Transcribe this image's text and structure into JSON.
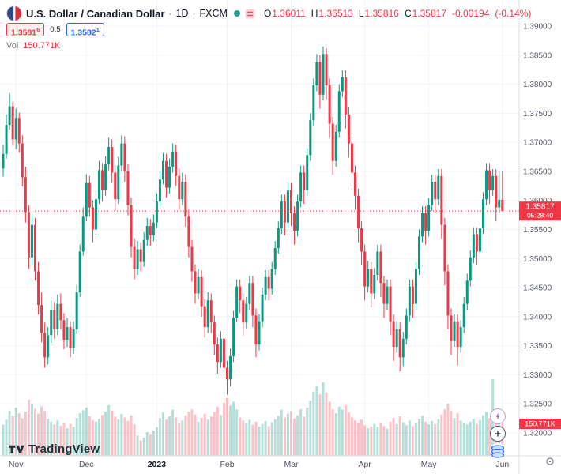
{
  "colors": {
    "up": "#089981",
    "down": "#f23645",
    "accent_blue": "#2962ff",
    "badge_red": "#f23645",
    "grid": "#f0f3fa",
    "axis_text": "#50535e"
  },
  "header": {
    "symbol_title": "U.S. Dollar / Canadian Dollar",
    "sep": "·",
    "timeframe": "1D",
    "exchange": "FXCM",
    "ohlc": {
      "o_label": "O",
      "o": "1.36011",
      "h_label": "H",
      "h": "1.36513",
      "l_label": "L",
      "l": "1.35816",
      "c_label": "C",
      "c": "1.35817",
      "change": "-0.00194",
      "change_pct": "(-0.14%)"
    }
  },
  "trade_buttons": {
    "sell_main": "1.3581",
    "sell_sup": "6",
    "spread": "0.5",
    "buy_main": "1.3582",
    "buy_sup": "1"
  },
  "volume_row": {
    "label": "Vol",
    "value": "150.771K"
  },
  "price_scale": {
    "ticks": [
      "1.39000",
      "1.38500",
      "1.38000",
      "1.37500",
      "1.37000",
      "1.36500",
      "1.36000",
      "1.35500",
      "1.35000",
      "1.34500",
      "1.34000",
      "1.33500",
      "1.33000",
      "1.32500",
      "1.32000"
    ],
    "last_price": "1.35817",
    "countdown": "05:28:40",
    "volume_badge": "150.771K"
  },
  "time_scale": [
    {
      "text": "Nov",
      "index": 4
    },
    {
      "text": "Dec",
      "index": 26
    },
    {
      "text": "2023",
      "index": 48,
      "bold": true
    },
    {
      "text": "Feb",
      "index": 70
    },
    {
      "text": "Mar",
      "index": 90
    },
    {
      "text": "Apr",
      "index": 113
    },
    {
      "text": "May",
      "index": 133
    },
    {
      "text": "Jun",
      "index": 156
    }
  ],
  "footer": {
    "logo": "TradingView"
  },
  "chart_data": {
    "type": "candlestick",
    "symbol": "USD/CAD",
    "timeframe": "1D",
    "exchange": "FXCM",
    "ylim": [
      1.32,
      1.39
    ],
    "last_price": 1.35817,
    "volume_pane": true,
    "columns": [
      "open",
      "high",
      "low",
      "close",
      "volume_K"
    ],
    "candles": [
      [
        1.3655,
        1.3696,
        1.3641,
        1.368,
        145
      ],
      [
        1.368,
        1.3748,
        1.3672,
        1.373,
        168
      ],
      [
        1.373,
        1.3785,
        1.3722,
        1.3762,
        210
      ],
      [
        1.3762,
        1.377,
        1.3694,
        1.3705,
        186
      ],
      [
        1.3705,
        1.3758,
        1.3688,
        1.3742,
        224
      ],
      [
        1.3742,
        1.3751,
        1.3682,
        1.3698,
        198
      ],
      [
        1.3698,
        1.3712,
        1.3624,
        1.364,
        175
      ],
      [
        1.364,
        1.3658,
        1.3562,
        1.358,
        205
      ],
      [
        1.358,
        1.3592,
        1.3482,
        1.3502,
        262
      ],
      [
        1.3502,
        1.3576,
        1.3488,
        1.3558,
        240
      ],
      [
        1.3558,
        1.357,
        1.3462,
        1.3478,
        218
      ],
      [
        1.3478,
        1.3494,
        1.3404,
        1.342,
        196
      ],
      [
        1.342,
        1.3442,
        1.3356,
        1.3372,
        230
      ],
      [
        1.3372,
        1.339,
        1.3312,
        1.333,
        208
      ],
      [
        1.333,
        1.3382,
        1.3318,
        1.3368,
        172
      ],
      [
        1.3368,
        1.3428,
        1.3355,
        1.3412,
        158
      ],
      [
        1.3412,
        1.3425,
        1.3362,
        1.3378,
        146
      ],
      [
        1.3378,
        1.3438,
        1.3368,
        1.3422,
        164
      ],
      [
        1.3422,
        1.344,
        1.3378,
        1.3394,
        139
      ],
      [
        1.3394,
        1.3406,
        1.3344,
        1.336,
        152
      ],
      [
        1.336,
        1.3398,
        1.3348,
        1.3382,
        128
      ],
      [
        1.3382,
        1.3392,
        1.333,
        1.3346,
        148
      ],
      [
        1.3346,
        1.3392,
        1.3336,
        1.3378,
        135
      ],
      [
        1.3378,
        1.3455,
        1.337,
        1.3442,
        176
      ],
      [
        1.3442,
        1.3524,
        1.3434,
        1.3512,
        198
      ],
      [
        1.3512,
        1.3588,
        1.3505,
        1.3572,
        212
      ],
      [
        1.3572,
        1.3645,
        1.3564,
        1.363,
        225
      ],
      [
        1.363,
        1.3642,
        1.3572,
        1.3588,
        184
      ],
      [
        1.3588,
        1.36,
        1.3528,
        1.355,
        166
      ],
      [
        1.355,
        1.3618,
        1.3541,
        1.3602,
        158
      ],
      [
        1.3602,
        1.3668,
        1.3594,
        1.3652,
        172
      ],
      [
        1.3652,
        1.3664,
        1.3598,
        1.3618,
        190
      ],
      [
        1.3618,
        1.3676,
        1.3608,
        1.3662,
        205
      ],
      [
        1.3662,
        1.3708,
        1.3652,
        1.3692,
        236
      ],
      [
        1.3692,
        1.3705,
        1.363,
        1.3648,
        210
      ],
      [
        1.3648,
        1.366,
        1.3582,
        1.3602,
        182
      ],
      [
        1.3602,
        1.3675,
        1.3594,
        1.366,
        168
      ],
      [
        1.366,
        1.3712,
        1.365,
        1.3698,
        195
      ],
      [
        1.3698,
        1.371,
        1.3632,
        1.365,
        178
      ],
      [
        1.365,
        1.3662,
        1.3574,
        1.3592,
        162
      ],
      [
        1.3592,
        1.3605,
        1.3502,
        1.352,
        188
      ],
      [
        1.352,
        1.3535,
        1.3464,
        1.3482,
        146
      ],
      [
        1.3482,
        1.353,
        1.3472,
        1.3516,
        94
      ],
      [
        1.3516,
        1.3528,
        1.3478,
        1.3494,
        72
      ],
      [
        1.3494,
        1.3545,
        1.3486,
        1.3532,
        85
      ],
      [
        1.3532,
        1.357,
        1.3522,
        1.3556,
        110
      ],
      [
        1.3556,
        1.3568,
        1.3522,
        1.354,
        98
      ],
      [
        1.354,
        1.3576,
        1.353,
        1.3562,
        118
      ],
      [
        1.3562,
        1.3612,
        1.3552,
        1.3598,
        132
      ],
      [
        1.3598,
        1.365,
        1.359,
        1.3636,
        176
      ],
      [
        1.3636,
        1.3682,
        1.3628,
        1.3668,
        202
      ],
      [
        1.3668,
        1.368,
        1.3605,
        1.3622,
        168
      ],
      [
        1.3622,
        1.3672,
        1.3612,
        1.3658,
        184
      ],
      [
        1.3658,
        1.3698,
        1.3648,
        1.3684,
        214
      ],
      [
        1.3684,
        1.3696,
        1.3625,
        1.3642,
        178
      ],
      [
        1.3642,
        1.3655,
        1.3584,
        1.3602,
        152
      ],
      [
        1.3602,
        1.3648,
        1.3592,
        1.3632,
        164
      ],
      [
        1.3632,
        1.3645,
        1.3555,
        1.3572,
        188
      ],
      [
        1.3572,
        1.3584,
        1.3502,
        1.352,
        205
      ],
      [
        1.352,
        1.3532,
        1.346,
        1.3478,
        215
      ],
      [
        1.3478,
        1.349,
        1.3422,
        1.344,
        192
      ],
      [
        1.344,
        1.3482,
        1.343,
        1.3468,
        158
      ],
      [
        1.3468,
        1.348,
        1.34,
        1.3418,
        176
      ],
      [
        1.3418,
        1.343,
        1.3364,
        1.3382,
        196
      ],
      [
        1.3382,
        1.3442,
        1.3372,
        1.3428,
        168
      ],
      [
        1.3428,
        1.344,
        1.3372,
        1.339,
        182
      ],
      [
        1.339,
        1.3402,
        1.3334,
        1.3352,
        204
      ],
      [
        1.3352,
        1.3364,
        1.3302,
        1.3322,
        228
      ],
      [
        1.3322,
        1.3375,
        1.3312,
        1.3362,
        190
      ],
      [
        1.3362,
        1.3374,
        1.3294,
        1.3312,
        246
      ],
      [
        1.3312,
        1.3324,
        1.3266,
        1.3292,
        268
      ],
      [
        1.3292,
        1.3345,
        1.328,
        1.3332,
        234
      ],
      [
        1.3332,
        1.341,
        1.3322,
        1.3398,
        252
      ],
      [
        1.3398,
        1.3464,
        1.339,
        1.3452,
        215
      ],
      [
        1.3452,
        1.3464,
        1.3406,
        1.3428,
        178
      ],
      [
        1.3428,
        1.344,
        1.3368,
        1.339,
        164
      ],
      [
        1.339,
        1.3434,
        1.338,
        1.3422,
        152
      ],
      [
        1.3422,
        1.347,
        1.3412,
        1.3458,
        168
      ],
      [
        1.3458,
        1.347,
        1.3382,
        1.3402,
        144
      ],
      [
        1.3402,
        1.3414,
        1.333,
        1.3352,
        158
      ],
      [
        1.3352,
        1.3404,
        1.3342,
        1.3392,
        136
      ],
      [
        1.3392,
        1.345,
        1.3382,
        1.3438,
        148
      ],
      [
        1.3438,
        1.348,
        1.3428,
        1.3468,
        162
      ],
      [
        1.3468,
        1.348,
        1.3428,
        1.3448,
        138
      ],
      [
        1.3448,
        1.3494,
        1.3438,
        1.3482,
        156
      ],
      [
        1.3482,
        1.353,
        1.3472,
        1.3518,
        170
      ],
      [
        1.3518,
        1.3564,
        1.3508,
        1.3552,
        186
      ],
      [
        1.3552,
        1.361,
        1.3542,
        1.3598,
        214
      ],
      [
        1.3598,
        1.361,
        1.354,
        1.3562,
        178
      ],
      [
        1.3562,
        1.363,
        1.3552,
        1.3618,
        196
      ],
      [
        1.3618,
        1.363,
        1.3556,
        1.3578,
        208
      ],
      [
        1.3578,
        1.359,
        1.3524,
        1.3548,
        174
      ],
      [
        1.3548,
        1.361,
        1.3538,
        1.3598,
        188
      ],
      [
        1.3598,
        1.366,
        1.3588,
        1.3648,
        216
      ],
      [
        1.3648,
        1.366,
        1.3594,
        1.3618,
        182
      ],
      [
        1.3618,
        1.369,
        1.3608,
        1.3678,
        224
      ],
      [
        1.3678,
        1.375,
        1.3668,
        1.3738,
        256
      ],
      [
        1.3738,
        1.381,
        1.3728,
        1.3798,
        298
      ],
      [
        1.3798,
        1.3852,
        1.3788,
        1.3838,
        324
      ],
      [
        1.3838,
        1.385,
        1.3758,
        1.3782,
        286
      ],
      [
        1.3782,
        1.3865,
        1.3772,
        1.3852,
        342
      ],
      [
        1.3852,
        1.3862,
        1.3774,
        1.3798,
        295
      ],
      [
        1.3798,
        1.381,
        1.3708,
        1.3732,
        252
      ],
      [
        1.3732,
        1.3744,
        1.3644,
        1.3668,
        216
      ],
      [
        1.3668,
        1.373,
        1.3658,
        1.3718,
        198
      ],
      [
        1.3718,
        1.38,
        1.3708,
        1.3788,
        228
      ],
      [
        1.3788,
        1.3824,
        1.3778,
        1.3812,
        215
      ],
      [
        1.3812,
        1.3824,
        1.3724,
        1.3748,
        236
      ],
      [
        1.3748,
        1.376,
        1.3674,
        1.3698,
        202
      ],
      [
        1.3698,
        1.371,
        1.3624,
        1.3648,
        178
      ],
      [
        1.3648,
        1.366,
        1.3584,
        1.3608,
        164
      ],
      [
        1.3608,
        1.362,
        1.3528,
        1.3552,
        152
      ],
      [
        1.3552,
        1.3564,
        1.3488,
        1.3512,
        168
      ],
      [
        1.3512,
        1.3524,
        1.3428,
        1.3452,
        142
      ],
      [
        1.3452,
        1.3496,
        1.3442,
        1.3482,
        128
      ],
      [
        1.3482,
        1.3494,
        1.3416,
        1.344,
        136
      ],
      [
        1.344,
        1.3484,
        1.343,
        1.3472,
        148
      ],
      [
        1.3472,
        1.3524,
        1.3462,
        1.3512,
        134
      ],
      [
        1.3512,
        1.3524,
        1.3434,
        1.3458,
        152
      ],
      [
        1.3458,
        1.347,
        1.3398,
        1.3422,
        138
      ],
      [
        1.3422,
        1.3464,
        1.3412,
        1.3452,
        126
      ],
      [
        1.3452,
        1.3464,
        1.3368,
        1.3392,
        158
      ],
      [
        1.3392,
        1.3404,
        1.3324,
        1.3348,
        176
      ],
      [
        1.3348,
        1.3392,
        1.3338,
        1.3378,
        148
      ],
      [
        1.3378,
        1.339,
        1.3306,
        1.333,
        184
      ],
      [
        1.333,
        1.3374,
        1.3315,
        1.3362,
        156
      ],
      [
        1.3362,
        1.3414,
        1.3352,
        1.3402,
        142
      ],
      [
        1.3402,
        1.3464,
        1.3392,
        1.3452,
        164
      ],
      [
        1.3452,
        1.3464,
        1.3398,
        1.3422,
        138
      ],
      [
        1.3422,
        1.3494,
        1.3412,
        1.3482,
        152
      ],
      [
        1.3482,
        1.355,
        1.3472,
        1.3538,
        172
      ],
      [
        1.3538,
        1.359,
        1.3528,
        1.3578,
        186
      ],
      [
        1.3578,
        1.359,
        1.3524,
        1.3548,
        158
      ],
      [
        1.3548,
        1.3604,
        1.3538,
        1.3592,
        146
      ],
      [
        1.3592,
        1.3644,
        1.3582,
        1.3632,
        162
      ],
      [
        1.3632,
        1.3644,
        1.3578,
        1.3602,
        148
      ],
      [
        1.3602,
        1.3654,
        1.3592,
        1.3642,
        170
      ],
      [
        1.3642,
        1.3654,
        1.3534,
        1.3558,
        192
      ],
      [
        1.3558,
        1.357,
        1.3454,
        1.3478,
        216
      ],
      [
        1.3478,
        1.349,
        1.3378,
        1.3402,
        242
      ],
      [
        1.3402,
        1.3414,
        1.3334,
        1.3358,
        208
      ],
      [
        1.3358,
        1.3404,
        1.3348,
        1.3392,
        176
      ],
      [
        1.3392,
        1.3404,
        1.3316,
        1.3348,
        198
      ],
      [
        1.3348,
        1.3394,
        1.3338,
        1.3382,
        164
      ],
      [
        1.3382,
        1.3434,
        1.3372,
        1.3422,
        152
      ],
      [
        1.3422,
        1.3474,
        1.3412,
        1.3462,
        146
      ],
      [
        1.3462,
        1.3514,
        1.3452,
        1.3502,
        158
      ],
      [
        1.3502,
        1.3554,
        1.3492,
        1.3542,
        172
      ],
      [
        1.3542,
        1.3554,
        1.3488,
        1.3512,
        148
      ],
      [
        1.3512,
        1.3564,
        1.3502,
        1.3552,
        166
      ],
      [
        1.3552,
        1.3614,
        1.3542,
        1.3602,
        188
      ],
      [
        1.3602,
        1.3664,
        1.3592,
        1.3652,
        204
      ],
      [
        1.3652,
        1.3664,
        1.3594,
        1.3618,
        176
      ],
      [
        1.3618,
        1.3654,
        1.3608,
        1.3642,
        356
      ],
      [
        1.3642,
        1.3654,
        1.3564,
        1.3588,
        196
      ],
      [
        1.3588,
        1.3652,
        1.3578,
        1.36011,
        214
      ],
      [
        1.36011,
        1.36513,
        1.35816,
        1.35817,
        150.771
      ]
    ]
  }
}
